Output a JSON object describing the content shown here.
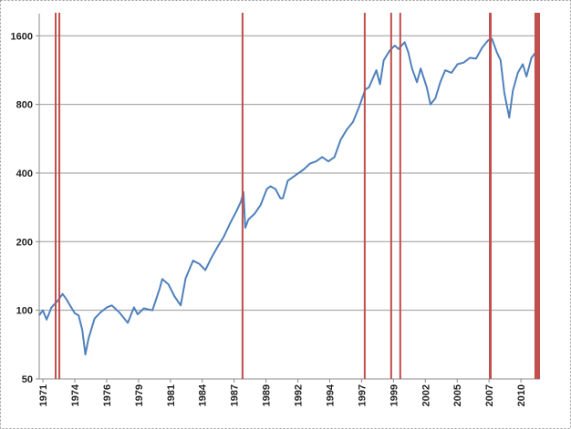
{
  "chart_data": {
    "type": "line",
    "log_scale_y": true,
    "grid": true,
    "xlim": [
      1971.0,
      2011.7
    ],
    "ylim": [
      50,
      2000
    ],
    "yticks": [
      50,
      100,
      200,
      400,
      800,
      1600
    ],
    "xticks": [
      {
        "value": 1971.3,
        "label": "1971"
      },
      {
        "value": 1973.89,
        "label": "1974"
      },
      {
        "value": 1976.48,
        "label": "1976"
      },
      {
        "value": 1979.07,
        "label": "1979"
      },
      {
        "value": 1981.66,
        "label": "1981"
      },
      {
        "value": 1984.25,
        "label": "1984"
      },
      {
        "value": 1986.84,
        "label": "1987"
      },
      {
        "value": 1989.43,
        "label": "1989"
      },
      {
        "value": 1992.02,
        "label": "1992"
      },
      {
        "value": 1994.61,
        "label": "1994"
      },
      {
        "value": 1997.2,
        "label": "1997"
      },
      {
        "value": 1999.79,
        "label": "1999"
      },
      {
        "value": 2002.38,
        "label": "2002"
      },
      {
        "value": 2004.97,
        "label": "2005"
      },
      {
        "value": 2007.56,
        "label": "2007"
      },
      {
        "value": 2010.15,
        "label": "2010"
      }
    ],
    "highlight_color": "#c0504d",
    "highlights": [
      {
        "start": 1972.26,
        "end": 1972.41
      },
      {
        "start": 1972.56,
        "end": 1972.71
      },
      {
        "start": 1987.45,
        "end": 1987.6
      },
      {
        "start": 1997.38,
        "end": 1997.53
      },
      {
        "start": 1999.53,
        "end": 1999.68
      },
      {
        "start": 2000.27,
        "end": 2000.42
      },
      {
        "start": 2007.55,
        "end": 2007.77
      },
      {
        "start": 2011.25,
        "end": 2011.7
      }
    ],
    "series": [
      {
        "color": "#4f81bd",
        "x": [
          1971.0,
          1971.3,
          1971.6,
          1972.0,
          1972.5,
          1972.9,
          1973.2,
          1973.5,
          1973.9,
          1974.2,
          1974.5,
          1974.75,
          1975.0,
          1975.5,
          1976.0,
          1976.5,
          1976.9,
          1977.5,
          1978.2,
          1978.7,
          1979.0,
          1979.5,
          1980.2,
          1980.8,
          1981.0,
          1981.5,
          1982.0,
          1982.5,
          1982.9,
          1983.5,
          1984.0,
          1984.5,
          1985.0,
          1985.5,
          1986.0,
          1986.5,
          1987.0,
          1987.4,
          1987.6,
          1987.75,
          1988.0,
          1988.5,
          1989.0,
          1989.5,
          1989.8,
          1990.2,
          1990.6,
          1990.8,
          1991.2,
          1991.8,
          1992.5,
          1993.0,
          1993.5,
          1994.0,
          1994.5,
          1995.0,
          1995.5,
          1996.0,
          1996.5,
          1997.0,
          1997.5,
          1997.8,
          1998.4,
          1998.7,
          1999.0,
          1999.5,
          1999.9,
          2000.2,
          2000.7,
          2001.0,
          2001.3,
          2001.7,
          2002.0,
          2002.5,
          2002.8,
          2003.2,
          2003.6,
          2004.0,
          2004.5,
          2005.0,
          2005.5,
          2006.0,
          2006.5,
          2007.0,
          2007.5,
          2007.8,
          2008.2,
          2008.5,
          2008.8,
          2009.2,
          2009.5,
          2009.9,
          2010.3,
          2010.6,
          2011.0,
          2011.3,
          2011.6
        ],
        "values": [
          95,
          100,
          91,
          103,
          110,
          118,
          112,
          105,
          97,
          95,
          82,
          64,
          75,
          92,
          98,
          103,
          105,
          98,
          88,
          103,
          96,
          102,
          100,
          125,
          137,
          130,
          115,
          105,
          138,
          165,
          160,
          150,
          170,
          190,
          210,
          240,
          270,
          300,
          330,
          230,
          250,
          265,
          290,
          340,
          350,
          340,
          310,
          310,
          370,
          390,
          415,
          440,
          450,
          470,
          450,
          470,
          560,
          620,
          670,
          780,
          930,
          950,
          1130,
          980,
          1250,
          1380,
          1450,
          1400,
          1500,
          1350,
          1150,
          1000,
          1150,
          950,
          800,
          850,
          1000,
          1130,
          1100,
          1200,
          1220,
          1280,
          1270,
          1420,
          1530,
          1550,
          1350,
          1250,
          900,
          700,
          920,
          1100,
          1200,
          1060,
          1280,
          1340,
          1200
        ]
      }
    ]
  }
}
